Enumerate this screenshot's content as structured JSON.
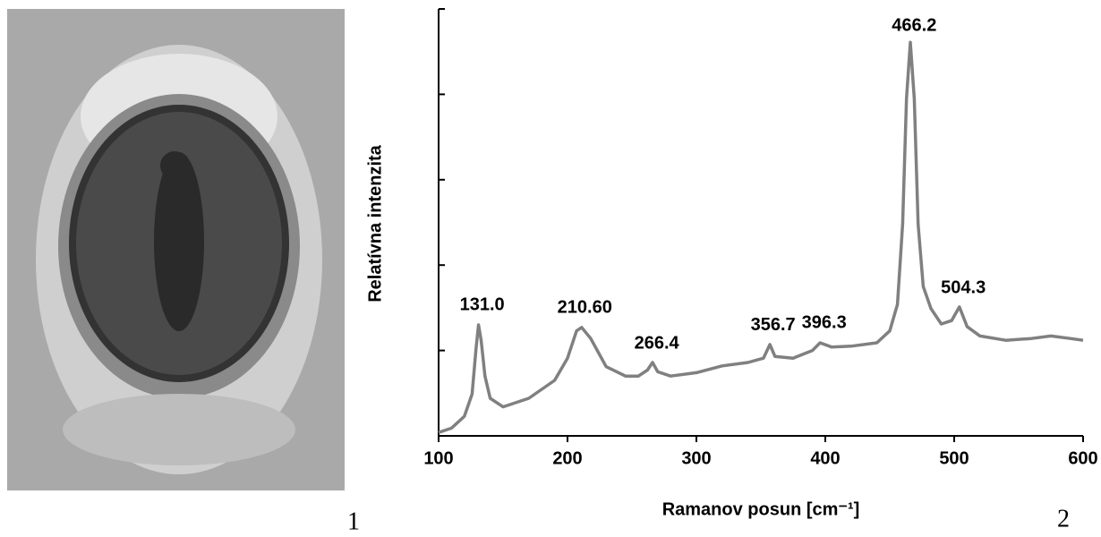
{
  "panels": [
    "1",
    "2"
  ],
  "chart_data": {
    "type": "line",
    "xlabel": "Ramanov posun [cm⁻¹]",
    "ylabel": "Relatívna intenzita",
    "xlim": [
      100,
      600
    ],
    "xticks": [
      100,
      200,
      300,
      400,
      500,
      600
    ],
    "ylim": [
      0,
      5
    ],
    "yticks": [
      1,
      2,
      3,
      4,
      5
    ],
    "x": [
      100,
      110,
      120,
      126,
      129,
      131,
      133,
      136,
      140,
      150,
      170,
      190,
      200,
      207,
      211,
      218,
      230,
      245,
      255,
      262,
      266,
      270,
      280,
      300,
      320,
      340,
      352,
      357,
      361,
      375,
      390,
      396,
      405,
      420,
      440,
      450,
      456,
      460,
      463,
      466,
      469,
      472,
      476,
      482,
      490,
      498,
      504,
      510,
      520,
      540,
      560,
      575,
      590,
      600
    ],
    "series": [
      {
        "color": "#808080",
        "values": [
          0.04,
          0.09,
          0.23,
          0.49,
          1.02,
          1.3,
          1.12,
          0.7,
          0.44,
          0.34,
          0.44,
          0.65,
          0.91,
          1.23,
          1.27,
          1.14,
          0.81,
          0.7,
          0.7,
          0.77,
          0.86,
          0.75,
          0.7,
          0.74,
          0.82,
          0.86,
          0.91,
          1.07,
          0.93,
          0.91,
          1.0,
          1.09,
          1.04,
          1.05,
          1.09,
          1.23,
          1.54,
          2.48,
          3.95,
          4.61,
          3.95,
          2.48,
          1.75,
          1.49,
          1.31,
          1.35,
          1.51,
          1.28,
          1.17,
          1.12,
          1.14,
          1.17,
          1.14,
          1.12
        ]
      }
    ],
    "annotations": [
      {
        "value": 131.0,
        "label": "131.0"
      },
      {
        "value": 210.6,
        "label": "210.60"
      },
      {
        "value": 266.4,
        "label": "266.4"
      },
      {
        "value": 356.7,
        "label": "356.7"
      },
      {
        "value": 396.3,
        "label": "396.3"
      },
      {
        "value": 466.2,
        "label": "466.2"
      },
      {
        "value": 504.3,
        "label": "504.3"
      }
    ]
  }
}
